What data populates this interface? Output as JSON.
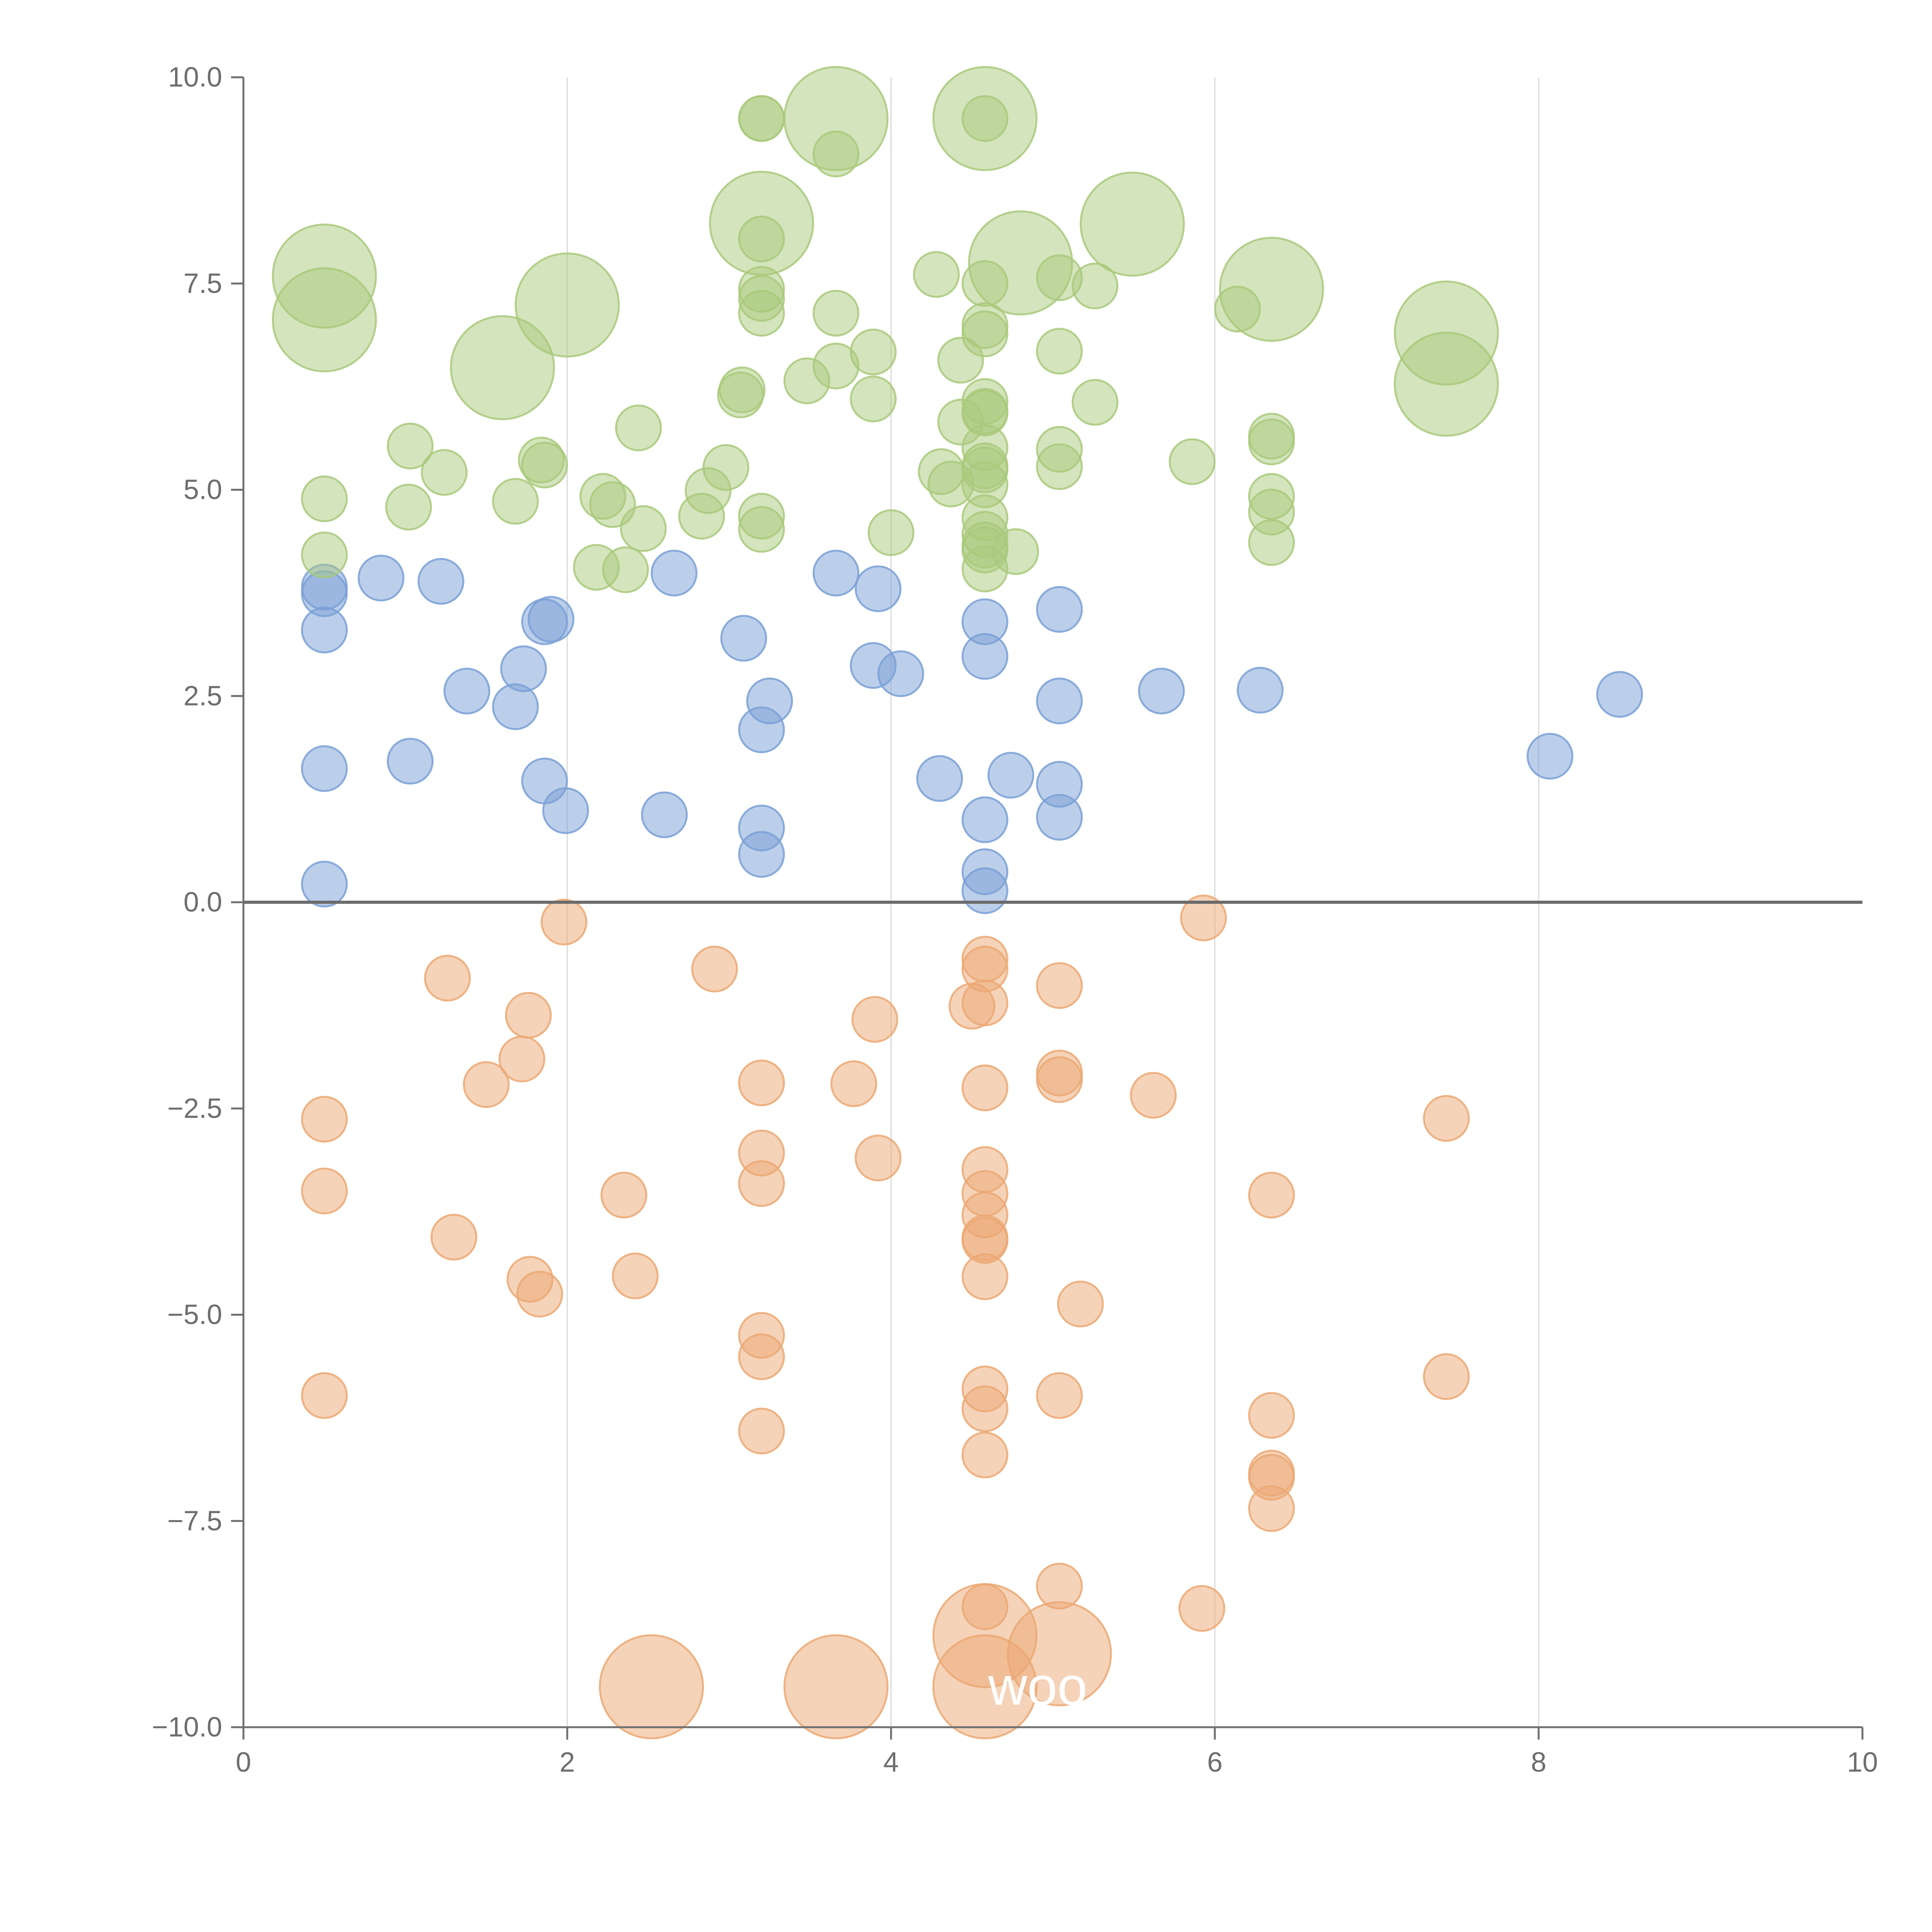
{
  "chart_data": {
    "type": "scatter",
    "title": "",
    "xlabel": "",
    "ylabel": "",
    "xlim": [
      0,
      10
    ],
    "ylim": [
      -10,
      10
    ],
    "xticks": [
      0,
      2,
      4,
      6,
      8,
      10
    ],
    "xtick_labels": [
      "0",
      "2",
      "4",
      "6",
      "8",
      "10"
    ],
    "yticks": [
      -10,
      -7.5,
      -5,
      -2.5,
      0,
      2.5,
      5,
      7.5,
      10
    ],
    "ytick_labels": [
      "−10.0",
      "−7.5",
      "−5.0",
      "−2.5",
      "0.0",
      "2.5",
      "5.0",
      "7.5",
      "10.0"
    ],
    "vertical_gridlines": [
      2,
      4,
      6,
      8
    ],
    "zero_line": 0,
    "annotations": [
      {
        "text": "woo",
        "x": 4.6,
        "y": -9.5
      }
    ],
    "series": [
      {
        "name": "blue",
        "color": "#7aa0d6",
        "points": [
          [
            0.5,
            3.82,
            1
          ],
          [
            0.5,
            3.74,
            1
          ],
          [
            0.5,
            3.3,
            1
          ],
          [
            0.5,
            1.62,
            1
          ],
          [
            0.5,
            0.22,
            1
          ],
          [
            0.85,
            3.93,
            1
          ],
          [
            1.03,
            1.71,
            1
          ],
          [
            1.22,
            3.89,
            1
          ],
          [
            1.38,
            2.56,
            1
          ],
          [
            1.68,
            2.37,
            1
          ],
          [
            1.73,
            2.83,
            1
          ],
          [
            1.86,
            3.4,
            1
          ],
          [
            1.9,
            3.43,
            1
          ],
          [
            1.86,
            1.47,
            1
          ],
          [
            1.99,
            1.11,
            1
          ],
          [
            2.6,
            1.06,
            1
          ],
          [
            2.66,
            3.99,
            1
          ],
          [
            3.09,
            3.2,
            1
          ],
          [
            3.2,
            2.09,
            1
          ],
          [
            3.25,
            2.44,
            1
          ],
          [
            3.2,
            0.9,
            1
          ],
          [
            3.2,
            0.58,
            1
          ],
          [
            3.66,
            3.99,
            1
          ],
          [
            3.89,
            2.87,
            1
          ],
          [
            3.92,
            3.8,
            1
          ],
          [
            4.06,
            2.77,
            1
          ],
          [
            4.3,
            1.5,
            1
          ],
          [
            4.58,
            3.4,
            1
          ],
          [
            4.58,
            2.98,
            1
          ],
          [
            4.58,
            1.0,
            1
          ],
          [
            4.58,
            0.37,
            1
          ],
          [
            4.58,
            0.14,
            1
          ],
          [
            4.74,
            1.54,
            1
          ],
          [
            5.04,
            3.55,
            1
          ],
          [
            5.04,
            2.44,
            1
          ],
          [
            5.04,
            1.43,
            1
          ],
          [
            5.04,
            1.03,
            1
          ],
          [
            5.67,
            2.56,
            1
          ],
          [
            6.28,
            2.57,
            1
          ],
          [
            8.07,
            1.77,
            1
          ],
          [
            8.5,
            2.52,
            1
          ]
        ]
      },
      {
        "name": "orange",
        "color": "#eba873",
        "points": [
          [
            0.5,
            -2.63,
            1
          ],
          [
            0.5,
            -3.5,
            1
          ],
          [
            0.5,
            -5.98,
            1
          ],
          [
            1.26,
            -0.92,
            1
          ],
          [
            1.3,
            -4.06,
            1
          ],
          [
            1.5,
            -2.21,
            1
          ],
          [
            1.72,
            -1.9,
            1
          ],
          [
            1.76,
            -1.37,
            1
          ],
          [
            1.77,
            -4.57,
            1
          ],
          [
            1.83,
            -4.75,
            1
          ],
          [
            1.98,
            -0.24,
            1
          ],
          [
            2.35,
            -3.55,
            1
          ],
          [
            2.42,
            -4.53,
            1
          ],
          [
            2.91,
            -0.81,
            1
          ],
          [
            3.2,
            -2.19,
            1
          ],
          [
            3.2,
            -3.04,
            1
          ],
          [
            3.2,
            -3.41,
            1
          ],
          [
            3.2,
            -5.25,
            1
          ],
          [
            3.2,
            -5.51,
            1
          ],
          [
            3.2,
            -6.41,
            1
          ],
          [
            3.77,
            -2.2,
            1
          ],
          [
            3.9,
            -1.42,
            1
          ],
          [
            3.92,
            -3.1,
            1
          ],
          [
            4.5,
            -1.26,
            1
          ],
          [
            4.58,
            -0.69,
            1
          ],
          [
            4.58,
            -0.81,
            1
          ],
          [
            4.58,
            -1.22,
            1
          ],
          [
            4.58,
            -2.25,
            1
          ],
          [
            4.58,
            -3.24,
            1
          ],
          [
            4.58,
            -3.53,
            1
          ],
          [
            4.58,
            -3.79,
            1
          ],
          [
            4.58,
            -4.07,
            1
          ],
          [
            4.58,
            -4.1,
            1
          ],
          [
            4.58,
            -4.54,
            1
          ],
          [
            4.58,
            -5.9,
            1
          ],
          [
            4.58,
            -6.14,
            1
          ],
          [
            4.58,
            -6.7,
            1
          ],
          [
            4.58,
            -8.54,
            1
          ],
          [
            5.04,
            -1.01,
            1
          ],
          [
            5.04,
            -2.07,
            1
          ],
          [
            5.04,
            -2.15,
            1
          ],
          [
            5.04,
            -5.98,
            1
          ],
          [
            5.04,
            -8.29,
            1
          ],
          [
            5.17,
            -4.87,
            1
          ],
          [
            5.62,
            -2.34,
            1
          ],
          [
            5.93,
            -0.19,
            1
          ],
          [
            5.92,
            -8.56,
            1
          ],
          [
            6.35,
            -3.55,
            1
          ],
          [
            6.35,
            -6.22,
            1
          ],
          [
            6.35,
            -6.92,
            1
          ],
          [
            6.35,
            -6.97,
            1
          ],
          [
            6.35,
            -7.35,
            1
          ],
          [
            7.43,
            -2.62,
            1
          ],
          [
            7.43,
            -5.75,
            1
          ],
          [
            2.52,
            -9.51,
            2.3
          ],
          [
            3.66,
            -9.51,
            2.3
          ],
          [
            4.58,
            -8.89,
            2.3
          ],
          [
            4.58,
            -9.51,
            2.3
          ],
          [
            5.04,
            -9.11,
            2.3
          ]
        ]
      },
      {
        "name": "green",
        "color": "#a9c97b",
        "points": [
          [
            0.5,
            4.89,
            1
          ],
          [
            0.5,
            4.21,
            1
          ],
          [
            1.03,
            5.53,
            1
          ],
          [
            1.02,
            4.79,
            1
          ],
          [
            1.24,
            5.21,
            1
          ],
          [
            1.68,
            4.86,
            1
          ],
          [
            1.84,
            5.36,
            1
          ],
          [
            1.86,
            5.3,
            1
          ],
          [
            2.18,
            4.06,
            1
          ],
          [
            2.22,
            4.92,
            1
          ],
          [
            2.28,
            4.82,
            1
          ],
          [
            2.36,
            4.03,
            1
          ],
          [
            2.44,
            5.75,
            1
          ],
          [
            2.47,
            4.53,
            1
          ],
          [
            2.83,
            4.68,
            1
          ],
          [
            2.87,
            4.99,
            1
          ],
          [
            2.98,
            5.27,
            1
          ],
          [
            3.07,
            6.15,
            1
          ],
          [
            3.08,
            6.21,
            1
          ],
          [
            3.2,
            9.5,
            1
          ],
          [
            3.2,
            9.5,
            1
          ],
          [
            3.2,
            8.04,
            1
          ],
          [
            3.2,
            7.43,
            1
          ],
          [
            3.2,
            7.32,
            1
          ],
          [
            3.2,
            7.14,
            1
          ],
          [
            3.2,
            4.68,
            1
          ],
          [
            3.2,
            4.52,
            1
          ],
          [
            3.48,
            6.32,
            1
          ],
          [
            3.66,
            9.07,
            1
          ],
          [
            3.66,
            7.14,
            1
          ],
          [
            3.66,
            6.5,
            1
          ],
          [
            3.89,
            6.67,
            1
          ],
          [
            3.89,
            6.1,
            1
          ],
          [
            4.0,
            4.48,
            1
          ],
          [
            4.28,
            7.61,
            1
          ],
          [
            4.31,
            5.22,
            1
          ],
          [
            4.37,
            5.07,
            1
          ],
          [
            4.43,
            6.57,
            1
          ],
          [
            4.43,
            5.82,
            1
          ],
          [
            4.58,
            9.5,
            1
          ],
          [
            4.58,
            7.5,
            1
          ],
          [
            4.58,
            6.99,
            1
          ],
          [
            4.58,
            6.89,
            1
          ],
          [
            4.58,
            6.07,
            1
          ],
          [
            4.58,
            5.95,
            1
          ],
          [
            4.58,
            5.93,
            1
          ],
          [
            4.58,
            5.51,
            1
          ],
          [
            4.58,
            5.29,
            1
          ],
          [
            4.58,
            5.24,
            1
          ],
          [
            4.58,
            5.06,
            1
          ],
          [
            4.58,
            4.66,
            1
          ],
          [
            4.58,
            4.46,
            1
          ],
          [
            4.58,
            4.33,
            1
          ],
          [
            4.58,
            4.27,
            1
          ],
          [
            4.58,
            4.04,
            1
          ],
          [
            4.77,
            4.25,
            1
          ],
          [
            5.04,
            7.57,
            1
          ],
          [
            5.04,
            6.68,
            1
          ],
          [
            5.04,
            5.49,
            1
          ],
          [
            5.04,
            5.28,
            1
          ],
          [
            5.26,
            7.47,
            1
          ],
          [
            5.26,
            6.06,
            1
          ],
          [
            5.86,
            5.34,
            1
          ],
          [
            6.14,
            7.19,
            1
          ],
          [
            6.35,
            5.65,
            1
          ],
          [
            6.35,
            5.58,
            1
          ],
          [
            6.35,
            4.92,
            1
          ],
          [
            6.35,
            4.73,
            1
          ],
          [
            6.35,
            4.36,
            1
          ],
          [
            0.5,
            7.59,
            2.3
          ],
          [
            0.5,
            7.06,
            2.3
          ],
          [
            1.6,
            6.48,
            2.3
          ],
          [
            2.0,
            7.24,
            2.3
          ],
          [
            3.2,
            8.23,
            2.3
          ],
          [
            3.66,
            9.5,
            2.3
          ],
          [
            4.58,
            9.5,
            2.3
          ],
          [
            4.8,
            7.75,
            2.3
          ],
          [
            5.49,
            8.22,
            2.3
          ],
          [
            6.35,
            7.43,
            2.3
          ],
          [
            7.43,
            6.9,
            2.3
          ],
          [
            7.43,
            6.28,
            2.3
          ]
        ]
      }
    ]
  }
}
